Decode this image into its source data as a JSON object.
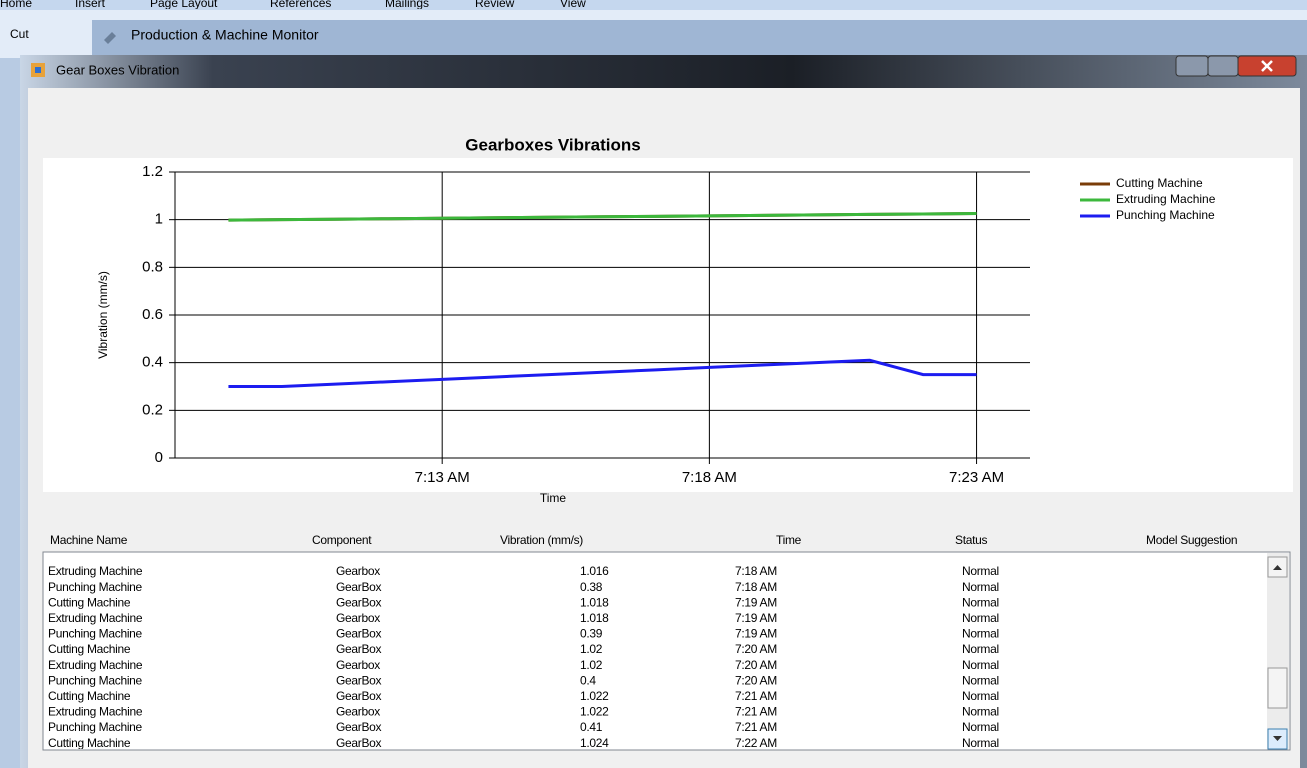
{
  "window": {
    "ribbon_tabs": [
      "Home",
      "Insert",
      "Page Layout",
      "References",
      "Mailings",
      "Review",
      "View"
    ],
    "ribbon_button": "Cut",
    "background_title": "Production & Machine Monitor",
    "title": "Gear Boxes Vibration"
  },
  "chart_data": {
    "type": "line",
    "title": "Gearboxes Vibrations",
    "x_label": "Time",
    "y_label": "Vibration (mm/s)",
    "x": [
      "7:09 AM",
      "7:10 AM",
      "7:11 AM",
      "7:12 AM",
      "7:13 AM",
      "7:14 AM",
      "7:15 AM",
      "7:16 AM",
      "7:17 AM",
      "7:18 AM",
      "7:19 AM",
      "7:20 AM",
      "7:21 AM",
      "7:22 AM",
      "7:23 AM"
    ],
    "series": [
      {
        "name": "Cutting Machine",
        "color": "#7a3c08",
        "values": [
          0.998,
          1.0,
          1.002,
          1.004,
          1.006,
          1.008,
          1.01,
          1.012,
          1.014,
          1.016,
          1.018,
          1.02,
          1.022,
          1.024,
          1.026
        ]
      },
      {
        "name": "Extruding Machine",
        "color": "#3cb83c",
        "values": [
          0.998,
          1.0,
          1.002,
          1.004,
          1.006,
          1.008,
          1.01,
          1.012,
          1.014,
          1.016,
          1.018,
          1.02,
          1.022,
          1.024,
          1.026
        ]
      },
      {
        "name": "Punching Machine",
        "color": "#1c1cf0",
        "values": [
          0.3,
          0.3,
          0.31,
          0.32,
          0.33,
          0.34,
          0.35,
          0.36,
          0.37,
          0.38,
          0.39,
          0.4,
          0.41,
          0.35,
          0.35
        ]
      }
    ],
    "xlim": [
      "7:08 AM",
      "7:24 AM"
    ],
    "xticks": [
      "7:13 AM",
      "7:18 AM",
      "7:23 AM"
    ],
    "ylim": [
      0,
      1.2
    ],
    "yticks": [
      0,
      0.2,
      0.4,
      0.6,
      0.8,
      1,
      1.2
    ],
    "grid": true,
    "legend": "top-right"
  },
  "table": {
    "columns": [
      "Machine Name",
      "Component",
      "Vibration (mm/s)",
      "Time",
      "Status",
      "Model Suggestion"
    ],
    "rows": [
      [
        "Extruding Machine",
        "Gearbox",
        "1.016",
        "7:18 AM",
        "Normal"
      ],
      [
        "Punching Machine",
        "GearBox",
        "0.38",
        "7:18 AM",
        "Normal"
      ],
      [
        "Cutting Machine",
        "GearBox",
        "1.018",
        "7:19 AM",
        "Normal"
      ],
      [
        "Extruding Machine",
        "Gearbox",
        "1.018",
        "7:19 AM",
        "Normal"
      ],
      [
        "Punching Machine",
        "GearBox",
        "0.39",
        "7:19 AM",
        "Normal"
      ],
      [
        "Cutting Machine",
        "GearBox",
        "1.02",
        "7:20 AM",
        "Normal"
      ],
      [
        "Extruding Machine",
        "Gearbox",
        "1.02",
        "7:20 AM",
        "Normal"
      ],
      [
        "Punching Machine",
        "GearBox",
        "0.4",
        "7:20 AM",
        "Normal"
      ],
      [
        "Cutting Machine",
        "GearBox",
        "1.022",
        "7:21 AM",
        "Normal"
      ],
      [
        "Extruding Machine",
        "Gearbox",
        "1.022",
        "7:21 AM",
        "Normal"
      ],
      [
        "Punching Machine",
        "GearBox",
        "0.41",
        "7:21 AM",
        "Normal"
      ],
      [
        "Cutting Machine",
        "GearBox",
        "1.024",
        "7:22 AM",
        "Normal"
      ]
    ]
  }
}
